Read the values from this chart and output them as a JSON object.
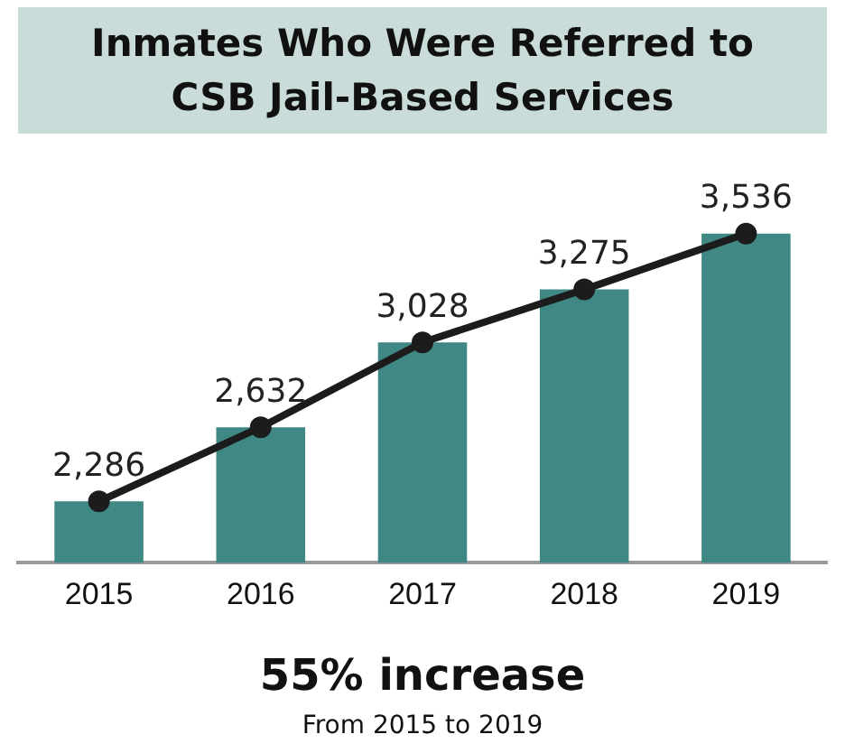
{
  "chart_data": {
    "type": "bar",
    "title": "Inmates Who  Were Referred to CSB Jail-Based Services",
    "categories": [
      "2015",
      "2016",
      "2017",
      "2018",
      "2019"
    ],
    "series": [
      {
        "color": "#3f8884",
        "values": [
          2286,
          2632,
          3028,
          3275,
          3536
        ]
      },
      {
        "type": "line",
        "color": "#1c1c1c",
        "values": [
          2286,
          2632,
          3028,
          3275,
          3536
        ],
        "value_labels": [
          "2,286",
          "2,632",
          "3,028",
          "3,275",
          "3,536"
        ]
      }
    ],
    "marker": "circle",
    "grid": false,
    "legend": false,
    "tick_labels": "x",
    "annotations": [
      "55% increase",
      "From 2015 to 2019"
    ]
  }
}
